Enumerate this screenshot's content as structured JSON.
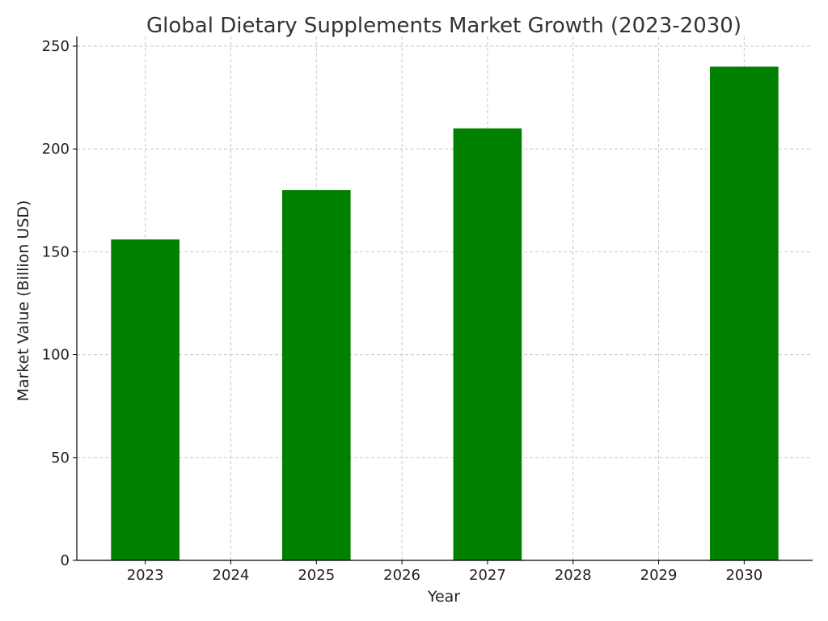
{
  "chart_data": {
    "type": "bar",
    "title": "Global Dietary Supplements Market Growth (2023-2030)",
    "xlabel": "Year",
    "ylabel": "Market Value (Billion USD)",
    "categories": [
      "2023",
      "2024",
      "2025",
      "2026",
      "2027",
      "2028",
      "2029",
      "2030"
    ],
    "values": [
      156,
      null,
      180,
      null,
      210,
      null,
      null,
      240
    ],
    "ylim": [
      0,
      250
    ],
    "yticks": [
      0,
      50,
      100,
      150,
      200,
      250
    ],
    "grid": true,
    "bar_color": "#008000"
  }
}
